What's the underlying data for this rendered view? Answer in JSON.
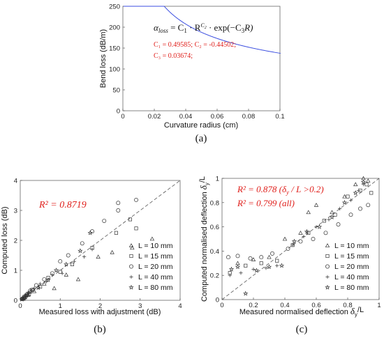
{
  "chart_data": [
    {
      "type": "line",
      "panel_label": "(a)",
      "xlabel": "Curvature radius (cm)",
      "ylabel": "Bend loss (dB/m)",
      "xlim": [
        0,
        0.1
      ],
      "ylim": [
        0,
        250
      ],
      "xticks": [
        "0",
        "0.02",
        "0.04",
        "0.06",
        "0.08",
        "0.1"
      ],
      "yticks": [
        "0",
        "50",
        "100",
        "150",
        "200",
        "250"
      ],
      "grid": false,
      "line_color": "#3b4ee0",
      "equation_parts": {
        "lhs": "α",
        "lhs_sub": "loss",
        "rhs_a": " = C",
        "rhs_a_sub": "1",
        "rhs_b": " · R",
        "rhs_b_sup": "C",
        "rhs_b_sup_sub": "2",
        "rhs_c": " · exp(−C",
        "rhs_c_sub": "3",
        "rhs_d": "R)"
      },
      "params_line1": "C₁ = 0.49585; C₂ = -0.44502;",
      "params_line2": "C₃ = 0.03674;",
      "params": {
        "C1": 0.49585,
        "C2": -0.44502,
        "C3": 0.03674
      }
    },
    {
      "type": "scatter",
      "panel_label": "(b)",
      "xlabel": "Measured loss with adjustment (dB)",
      "ylabel": "Computed loss (dB)",
      "xlim": [
        0,
        4
      ],
      "ylim": [
        0,
        4
      ],
      "xticks": [
        "0",
        "1",
        "2",
        "3",
        "4"
      ],
      "yticks": [
        "0",
        "1",
        "2",
        "3",
        "4"
      ],
      "annotation": "R² = 0.8719",
      "annotation_color": "#e0201c",
      "reference_line": "y = x (dashed)",
      "legend_position": "bottom-right",
      "series": [
        {
          "name": "L = 10 mm",
          "marker": "triangle",
          "points": [
            [
              0.08,
              0.05
            ],
            [
              0.12,
              0.1
            ],
            [
              0.2,
              0.18
            ],
            [
              0.35,
              0.3
            ],
            [
              0.6,
              0.55
            ],
            [
              0.85,
              0.4
            ],
            [
              1.15,
              0.85
            ],
            [
              1.45,
              0.7
            ],
            [
              1.95,
              1.45
            ],
            [
              2.3,
              1.6
            ],
            [
              2.8,
              1.75
            ],
            [
              3.3,
              2.05
            ]
          ]
        },
        {
          "name": "L = 15 mm",
          "marker": "square",
          "points": [
            [
              0.05,
              0.04
            ],
            [
              0.1,
              0.08
            ],
            [
              0.15,
              0.15
            ],
            [
              0.22,
              0.2
            ],
            [
              0.3,
              0.35
            ],
            [
              0.5,
              0.45
            ],
            [
              0.7,
              0.75
            ],
            [
              1.0,
              0.95
            ],
            [
              1.3,
              1.2
            ],
            [
              1.8,
              1.75
            ],
            [
              2.4,
              2.25
            ],
            [
              2.75,
              2.7
            ],
            [
              2.9,
              2.4
            ]
          ]
        },
        {
          "name": "L = 20 mm",
          "marker": "circle",
          "points": [
            [
              0.06,
              0.06
            ],
            [
              0.1,
              0.12
            ],
            [
              0.18,
              0.22
            ],
            [
              0.25,
              0.32
            ],
            [
              0.4,
              0.5
            ],
            [
              0.6,
              0.7
            ],
            [
              0.8,
              0.9
            ],
            [
              1.0,
              1.3
            ],
            [
              1.2,
              1.5
            ],
            [
              1.55,
              1.9
            ],
            [
              1.8,
              2.3
            ],
            [
              2.1,
              2.65
            ],
            [
              2.45,
              3.0
            ],
            [
              2.45,
              3.25
            ],
            [
              2.9,
              3.35
            ]
          ]
        },
        {
          "name": "L = 40 mm",
          "marker": "plus",
          "points": [
            [
              0.05,
              0.05
            ],
            [
              0.1,
              0.07
            ],
            [
              0.15,
              0.12
            ],
            [
              0.2,
              0.25
            ],
            [
              0.28,
              0.3
            ],
            [
              0.35,
              0.4
            ],
            [
              0.5,
              0.55
            ],
            [
              0.65,
              0.62
            ],
            [
              0.8,
              0.85
            ],
            [
              1.05,
              0.9
            ],
            [
              1.35,
              1.3
            ],
            [
              1.6,
              1.45
            ],
            [
              1.8,
              1.7
            ]
          ]
        },
        {
          "name": "L = 80 mm",
          "marker": "star",
          "points": [
            [
              0.04,
              0.03
            ],
            [
              0.08,
              0.06
            ],
            [
              0.12,
              0.15
            ],
            [
              0.18,
              0.2
            ],
            [
              0.25,
              0.28
            ],
            [
              0.32,
              0.35
            ],
            [
              0.45,
              0.42
            ],
            [
              0.7,
              0.68
            ],
            [
              0.9,
              1.0
            ],
            [
              1.15,
              1.2
            ],
            [
              1.5,
              1.65
            ],
            [
              1.75,
              2.25
            ]
          ]
        }
      ]
    },
    {
      "type": "scatter",
      "panel_label": "(c)",
      "xlabel_main": "Measured normalised deflection ",
      "xlabel_italic": "δ",
      "xlabel_sub": "y",
      "xlabel_tail": "/L",
      "ylabel_main": "Computed normalised deflection ",
      "ylabel_italic": "δ",
      "ylabel_sub": "y",
      "ylabel_tail": "/L",
      "xlim": [
        0,
        1
      ],
      "ylim": [
        0,
        1
      ],
      "xticks": [
        "0",
        "0.2",
        "0.4",
        "0.6",
        "0.8",
        "1"
      ],
      "yticks": [
        "0",
        "0.2",
        "0.4",
        "0.6",
        "0.8",
        "1"
      ],
      "annotation_1": "R² = 0.878 (δ",
      "annotation_1_sub": "y",
      "annotation_1_tail": " / L >0.2)",
      "annotation_2": "R² = 0.799 (all)",
      "annotation_color": "#e0201c",
      "reference_line": "y = x (dashed)",
      "legend_position": "bottom-right",
      "series": [
        {
          "name": "L = 10 mm",
          "marker": "triangle",
          "points": [
            [
              0.1,
              0.3
            ],
            [
              0.2,
              0.33
            ],
            [
              0.3,
              0.35
            ],
            [
              0.4,
              0.5
            ],
            [
              0.5,
              0.55
            ],
            [
              0.55,
              0.72
            ],
            [
              0.6,
              0.78
            ],
            [
              0.7,
              0.72
            ],
            [
              0.78,
              0.85
            ],
            [
              0.85,
              0.95
            ],
            [
              0.9,
              1.0
            ],
            [
              0.93,
              0.98
            ]
          ]
        },
        {
          "name": "L = 15 mm",
          "marker": "square",
          "points": [
            [
              0.05,
              0.22
            ],
            [
              0.15,
              0.28
            ],
            [
              0.25,
              0.3
            ],
            [
              0.35,
              0.32
            ],
            [
              0.45,
              0.45
            ],
            [
              0.55,
              0.55
            ],
            [
              0.65,
              0.65
            ],
            [
              0.72,
              0.7
            ],
            [
              0.8,
              0.85
            ],
            [
              0.88,
              0.9
            ],
            [
              0.92,
              0.95
            ],
            [
              0.95,
              0.88
            ]
          ]
        },
        {
          "name": "L = 20 mm",
          "marker": "circle",
          "points": [
            [
              0.04,
              0.35
            ],
            [
              0.1,
              0.36
            ],
            [
              0.18,
              0.34
            ],
            [
              0.25,
              0.35
            ],
            [
              0.32,
              0.38
            ],
            [
              0.42,
              0.42
            ],
            [
              0.5,
              0.48
            ],
            [
              0.58,
              0.5
            ],
            [
              0.66,
              0.55
            ],
            [
              0.74,
              0.62
            ],
            [
              0.82,
              0.7
            ],
            [
              0.88,
              0.75
            ],
            [
              0.93,
              0.78
            ]
          ]
        },
        {
          "name": "L = 40 mm",
          "marker": "plus",
          "points": [
            [
              0.05,
              0.2
            ],
            [
              0.12,
              0.22
            ],
            [
              0.2,
              0.25
            ],
            [
              0.28,
              0.26
            ],
            [
              0.35,
              0.28
            ],
            [
              0.45,
              0.45
            ],
            [
              0.52,
              0.52
            ],
            [
              0.6,
              0.6
            ],
            [
              0.68,
              0.66
            ],
            [
              0.75,
              0.75
            ],
            [
              0.82,
              0.82
            ],
            [
              0.87,
              0.9
            ],
            [
              0.9,
              0.95
            ]
          ]
        },
        {
          "name": "L = 80 mm",
          "marker": "star",
          "points": [
            [
              0.06,
              0.25
            ],
            [
              0.1,
              0.27
            ],
            [
              0.15,
              0.05
            ],
            [
              0.22,
              0.24
            ],
            [
              0.3,
              0.27
            ],
            [
              0.38,
              0.28
            ],
            [
              0.46,
              0.48
            ],
            [
              0.54,
              0.56
            ],
            [
              0.62,
              0.6
            ],
            [
              0.7,
              0.68
            ],
            [
              0.78,
              0.8
            ],
            [
              0.85,
              0.88
            ],
            [
              0.9,
              0.97
            ]
          ]
        }
      ]
    }
  ]
}
